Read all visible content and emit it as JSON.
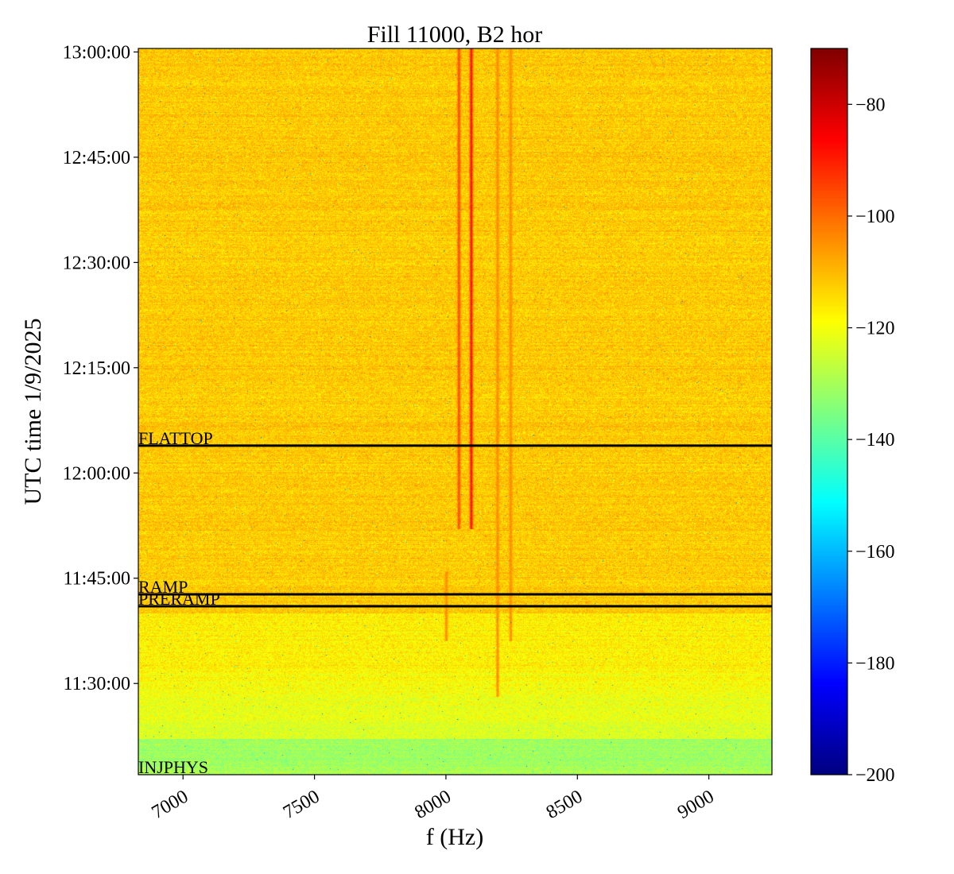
{
  "chart_data": {
    "type": "heatmap",
    "title": "Fill 11000, B2 hor",
    "xlabel": "f (Hz)",
    "ylabel": "UTC time 1/9/2025",
    "xlim": [
      6830,
      9240
    ],
    "x_ticks": [
      {
        "value": 7000,
        "label": "7000"
      },
      {
        "value": 7500,
        "label": "7500"
      },
      {
        "value": 8000,
        "label": "8000"
      },
      {
        "value": 8500,
        "label": "8500"
      },
      {
        "value": 9000,
        "label": "9000"
      }
    ],
    "ylim_minutes_utc": [
      677.0,
      780.5
    ],
    "y_ticks": [
      {
        "value": 690,
        "label": "11:30:00"
      },
      {
        "value": 705,
        "label": "11:45:00"
      },
      {
        "value": 720,
        "label": "12:00:00"
      },
      {
        "value": 735,
        "label": "12:15:00"
      },
      {
        "value": 750,
        "label": "12:30:00"
      },
      {
        "value": 765,
        "label": "12:45:00"
      },
      {
        "value": 780,
        "label": "13:00:00"
      }
    ],
    "beam_modes": [
      {
        "name": "INJPHYS",
        "time": 677.0,
        "line": false
      },
      {
        "name": "PRERAMP",
        "time": 701.0,
        "line": true
      },
      {
        "name": "RAMP",
        "time": 702.7,
        "line": true
      },
      {
        "name": "FLATTOP",
        "time": 723.9,
        "line": true
      }
    ],
    "spectral_lines": [
      {
        "f": 8048,
        "t_start": 712,
        "t_end": 780.5,
        "level": -96
      },
      {
        "f": 8095,
        "t_start": 712,
        "t_end": 780.5,
        "level": -88
      },
      {
        "f": 8195,
        "t_start": 688,
        "t_end": 780.5,
        "level": -104
      },
      {
        "f": 8245,
        "t_start": 696,
        "t_end": 780.5,
        "level": -104
      },
      {
        "f": 8000,
        "t_start": 696,
        "t_end": 706,
        "level": -104
      }
    ],
    "colorbar": {
      "label": "",
      "range": [
        -200,
        -70
      ],
      "ticks": [
        -200,
        -180,
        -160,
        -140,
        -120,
        -100,
        -80
      ],
      "tick_labels": [
        "−200",
        "−180",
        "−160",
        "−140",
        "−120",
        "−100",
        "−80"
      ],
      "colormap": "jet"
    }
  }
}
